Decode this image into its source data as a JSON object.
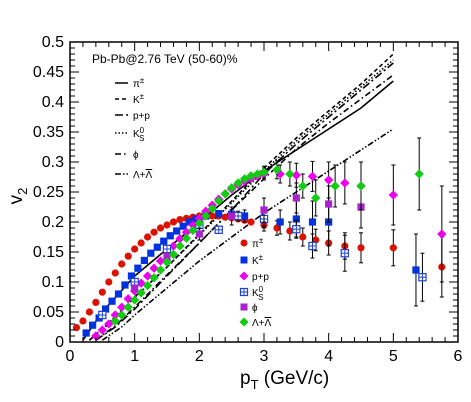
{
  "chart_data": {
    "type": "scatter",
    "annotation": "Pb-Pb@2.76 TeV (50-60)%",
    "xlabel_main": "p",
    "xlabel_sub": "T",
    "xlabel_rest": " (GeV/c)",
    "ylabel_main": "v",
    "ylabel_sub": "2",
    "xlim": [
      0,
      6
    ],
    "ylim": [
      0,
      0.5
    ],
    "x_ticks": [
      "0",
      "1",
      "2",
      "3",
      "4",
      "5",
      "6"
    ],
    "y_ticks": [
      "0",
      "0.05",
      "0.1",
      "0.15",
      "0.2",
      "0.25",
      "0.3",
      "0.35",
      "0.4",
      "0.45",
      "0.5"
    ],
    "curves_legend": [
      {
        "label": "π±",
        "style": "solid"
      },
      {
        "label": "K±",
        "style": "dashed"
      },
      {
        "label": "p+p",
        "style": "dashdot"
      },
      {
        "label": "K0S",
        "style": "dotted"
      },
      {
        "label": "ϕ",
        "style": "dashdot-bold"
      },
      {
        "label": "Λ+Λ",
        "style": "dashdotdot"
      }
    ],
    "curves": [
      {
        "name": "π±",
        "dash": "",
        "points": [
          [
            0.2,
            0.003
          ],
          [
            0.5,
            0.05
          ],
          [
            1.0,
            0.11
          ],
          [
            1.5,
            0.155
          ],
          [
            2.0,
            0.2
          ],
          [
            2.5,
            0.245
          ],
          [
            3.0,
            0.285
          ],
          [
            3.5,
            0.32
          ],
          [
            4.0,
            0.355
          ],
          [
            4.5,
            0.39
          ],
          [
            5.0,
            0.435
          ]
        ]
      },
      {
        "name": "K±",
        "dash": "4,3",
        "points": [
          [
            0.3,
            0.003
          ],
          [
            0.6,
            0.03
          ],
          [
            1.0,
            0.075
          ],
          [
            1.5,
            0.125
          ],
          [
            2.0,
            0.18
          ],
          [
            2.5,
            0.235
          ],
          [
            3.0,
            0.29
          ],
          [
            3.5,
            0.34
          ],
          [
            4.0,
            0.385
          ],
          [
            4.5,
            0.43
          ],
          [
            5.0,
            0.48
          ]
        ]
      },
      {
        "name": "p+p",
        "dash": "8,3,2,3",
        "points": [
          [
            0.4,
            0.003
          ],
          [
            0.7,
            0.025
          ],
          [
            1.0,
            0.055
          ],
          [
            1.5,
            0.11
          ],
          [
            2.0,
            0.165
          ],
          [
            2.5,
            0.22
          ],
          [
            3.0,
            0.28
          ],
          [
            3.5,
            0.33
          ],
          [
            4.0,
            0.375
          ],
          [
            4.5,
            0.42
          ],
          [
            5.0,
            0.465
          ]
        ]
      },
      {
        "name": "K0S",
        "dash": "1.5,2",
        "points": [
          [
            0.3,
            0.003
          ],
          [
            0.6,
            0.032
          ],
          [
            1.0,
            0.074
          ],
          [
            1.5,
            0.125
          ],
          [
            2.0,
            0.178
          ],
          [
            2.5,
            0.232
          ],
          [
            3.0,
            0.285
          ],
          [
            3.5,
            0.335
          ],
          [
            4.0,
            0.38
          ],
          [
            4.5,
            0.425
          ],
          [
            5.0,
            0.47
          ]
        ]
      },
      {
        "name": "ϕ",
        "dash": "6,3,1.5,3",
        "points": [
          [
            0.4,
            0.003
          ],
          [
            0.7,
            0.027
          ],
          [
            1.0,
            0.058
          ],
          [
            1.5,
            0.112
          ],
          [
            2.0,
            0.165
          ],
          [
            2.5,
            0.22
          ],
          [
            3.0,
            0.272
          ],
          [
            3.5,
            0.322
          ],
          [
            4.0,
            0.365
          ],
          [
            4.5,
            0.405
          ],
          [
            5.0,
            0.445
          ]
        ]
      },
      {
        "name": "Λ+Λ",
        "dash": "6,2,1.5,2,1.5,2",
        "points": [
          [
            0.5,
            0.003
          ],
          [
            0.8,
            0.025
          ],
          [
            1.0,
            0.045
          ],
          [
            1.5,
            0.09
          ],
          [
            2.0,
            0.135
          ],
          [
            2.5,
            0.175
          ],
          [
            3.0,
            0.215
          ],
          [
            3.5,
            0.25
          ],
          [
            4.0,
            0.285
          ],
          [
            4.5,
            0.32
          ],
          [
            5.0,
            0.355
          ]
        ]
      }
    ],
    "points_legend": [
      {
        "label": "π±",
        "marker": "circle",
        "color": "#dd1100"
      },
      {
        "label": "K±",
        "marker": "square",
        "color": "#0033dd"
      },
      {
        "label": "p+p",
        "marker": "diamond",
        "color": "#ee00ee"
      },
      {
        "label": "K0S",
        "marker": "open-square",
        "color": "#2244cc"
      },
      {
        "label": "ϕ",
        "marker": "square",
        "color": "#aa22cc"
      },
      {
        "label": "Λ+Λ",
        "marker": "diamond",
        "color": "#11cc11"
      }
    ],
    "series": [
      {
        "name": "π±",
        "marker": "circle",
        "color": "#dd1100",
        "points": [
          [
            0.1,
            0.024,
            0
          ],
          [
            0.2,
            0.035,
            0
          ],
          [
            0.3,
            0.05,
            0
          ],
          [
            0.4,
            0.066,
            0
          ],
          [
            0.5,
            0.083,
            0
          ],
          [
            0.6,
            0.1,
            0
          ],
          [
            0.7,
            0.115,
            0
          ],
          [
            0.8,
            0.13,
            0
          ],
          [
            0.9,
            0.143,
            0
          ],
          [
            1.0,
            0.155,
            0
          ],
          [
            1.1,
            0.165,
            0
          ],
          [
            1.2,
            0.175,
            0
          ],
          [
            1.3,
            0.183,
            0
          ],
          [
            1.4,
            0.19,
            0
          ],
          [
            1.5,
            0.195,
            0
          ],
          [
            1.6,
            0.2,
            0
          ],
          [
            1.7,
            0.204,
            0
          ],
          [
            1.8,
            0.206,
            0
          ],
          [
            1.9,
            0.208,
            0
          ],
          [
            2.0,
            0.21,
            0
          ],
          [
            2.1,
            0.21,
            0
          ],
          [
            2.2,
            0.21,
            0
          ],
          [
            2.3,
            0.21,
            0
          ],
          [
            2.4,
            0.208,
            0
          ],
          [
            2.5,
            0.207,
            0
          ],
          [
            2.6,
            0.205,
            0
          ],
          [
            2.7,
            0.203,
            0
          ],
          [
            2.8,
            0.2,
            0
          ],
          [
            3.0,
            0.195,
            0.01
          ],
          [
            3.2,
            0.19,
            0.012
          ],
          [
            3.4,
            0.185,
            0.015
          ],
          [
            3.6,
            0.175,
            0.015
          ],
          [
            3.8,
            0.17,
            0.018
          ],
          [
            4.0,
            0.165,
            0.02
          ],
          [
            4.25,
            0.16,
            0.022
          ],
          [
            4.5,
            0.157,
            0.025
          ],
          [
            5.0,
            0.157,
            0.03
          ],
          [
            5.75,
            0.125,
            0.05
          ]
        ]
      },
      {
        "name": "K±",
        "marker": "square",
        "color": "#0033dd",
        "points": [
          [
            0.25,
            0.015,
            0
          ],
          [
            0.35,
            0.028,
            0
          ],
          [
            0.45,
            0.04,
            0
          ],
          [
            0.55,
            0.055,
            0
          ],
          [
            0.65,
            0.068,
            0
          ],
          [
            0.75,
            0.08,
            0
          ],
          [
            0.85,
            0.095,
            0
          ],
          [
            0.95,
            0.11,
            0
          ],
          [
            1.05,
            0.123,
            0
          ],
          [
            1.15,
            0.136,
            0
          ],
          [
            1.25,
            0.148,
            0
          ],
          [
            1.35,
            0.158,
            0
          ],
          [
            1.45,
            0.168,
            0
          ],
          [
            1.55,
            0.177,
            0
          ],
          [
            1.65,
            0.185,
            0
          ],
          [
            1.75,
            0.193,
            0
          ],
          [
            1.85,
            0.2,
            0
          ],
          [
            1.95,
            0.205,
            0
          ],
          [
            2.1,
            0.21,
            0
          ],
          [
            2.3,
            0.214,
            0.005
          ],
          [
            2.5,
            0.213,
            0.008
          ],
          [
            2.7,
            0.21,
            0.01
          ],
          [
            3.0,
            0.205,
            0.015
          ],
          [
            3.25,
            0.2,
            0.02
          ],
          [
            3.5,
            0.205,
            0.03
          ],
          [
            3.75,
            0.2,
            0.035
          ],
          [
            4.0,
            0.2,
            0.04
          ],
          [
            5.35,
            0.12,
            0.06
          ]
        ]
      },
      {
        "name": "p+p",
        "marker": "diamond",
        "color": "#ee00ee",
        "points": [
          [
            0.4,
            0.01,
            0
          ],
          [
            0.5,
            0.02,
            0
          ],
          [
            0.6,
            0.03,
            0
          ],
          [
            0.7,
            0.045,
            0
          ],
          [
            0.8,
            0.058,
            0
          ],
          [
            0.9,
            0.072,
            0
          ],
          [
            1.0,
            0.085,
            0
          ],
          [
            1.1,
            0.098,
            0
          ],
          [
            1.2,
            0.11,
            0
          ],
          [
            1.3,
            0.123,
            0
          ],
          [
            1.4,
            0.135,
            0
          ],
          [
            1.5,
            0.148,
            0
          ],
          [
            1.6,
            0.16,
            0
          ],
          [
            1.7,
            0.172,
            0
          ],
          [
            1.8,
            0.183,
            0
          ],
          [
            1.9,
            0.195,
            0
          ],
          [
            2.0,
            0.206,
            0
          ],
          [
            2.1,
            0.218,
            0
          ],
          [
            2.2,
            0.228,
            0
          ],
          [
            2.3,
            0.238,
            0
          ],
          [
            2.4,
            0.247,
            0
          ],
          [
            2.5,
            0.255,
            0
          ],
          [
            2.6,
            0.262,
            0
          ],
          [
            2.7,
            0.268,
            0
          ],
          [
            2.8,
            0.273,
            0
          ],
          [
            2.9,
            0.277,
            0
          ],
          [
            3.0,
            0.28,
            0.01
          ],
          [
            3.25,
            0.28,
            0.015
          ],
          [
            3.5,
            0.278,
            0.02
          ],
          [
            3.75,
            0.276,
            0.025
          ],
          [
            4.0,
            0.27,
            0.03
          ],
          [
            4.25,
            0.265,
            0.035
          ],
          [
            4.5,
            0.26,
            0.04
          ],
          [
            5.0,
            0.245,
            0.05
          ],
          [
            5.75,
            0.18,
            0.08
          ]
        ]
      },
      {
        "name": "K0S",
        "marker": "open-square",
        "color": "#2244cc",
        "points": [
          [
            0.5,
            0.045,
            0
          ],
          [
            1.0,
            0.1,
            0
          ],
          [
            1.5,
            0.155,
            0
          ],
          [
            2.0,
            0.195,
            0
          ],
          [
            2.3,
            0.187,
            0.005
          ],
          [
            2.6,
            0.21,
            0.008
          ],
          [
            3.0,
            0.205,
            0.012
          ],
          [
            3.5,
            0.188,
            0.015
          ],
          [
            3.75,
            0.16,
            0.02
          ],
          [
            4.25,
            0.148,
            0.03
          ],
          [
            5.45,
            0.108,
            0.04
          ]
        ]
      },
      {
        "name": "ϕ",
        "marker": "square",
        "color": "#aa22cc",
        "points": [
          [
            1.0,
            0.09,
            0
          ],
          [
            1.5,
            0.14,
            0
          ],
          [
            2.0,
            0.18,
            0.01
          ],
          [
            2.5,
            0.21,
            0.015
          ],
          [
            3.0,
            0.22,
            0.02
          ],
          [
            3.5,
            0.24,
            0.025
          ],
          [
            4.0,
            0.23,
            0.03
          ],
          [
            4.5,
            0.225,
            0.035
          ]
        ]
      },
      {
        "name": "Λ+Λ",
        "marker": "diamond",
        "color": "#11cc11",
        "points": [
          [
            0.7,
            0.035,
            0
          ],
          [
            0.8,
            0.045,
            0
          ],
          [
            0.9,
            0.058,
            0
          ],
          [
            1.0,
            0.07,
            0
          ],
          [
            1.1,
            0.082,
            0
          ],
          [
            1.2,
            0.094,
            0
          ],
          [
            1.3,
            0.107,
            0
          ],
          [
            1.4,
            0.12,
            0
          ],
          [
            1.5,
            0.133,
            0
          ],
          [
            1.6,
            0.146,
            0
          ],
          [
            1.7,
            0.16,
            0
          ],
          [
            1.8,
            0.173,
            0
          ],
          [
            1.9,
            0.186,
            0
          ],
          [
            2.0,
            0.198,
            0
          ],
          [
            2.1,
            0.21,
            0
          ],
          [
            2.2,
            0.222,
            0
          ],
          [
            2.3,
            0.235,
            0
          ],
          [
            2.4,
            0.247,
            0
          ],
          [
            2.5,
            0.257,
            0
          ],
          [
            2.6,
            0.265,
            0
          ],
          [
            2.7,
            0.272,
            0
          ],
          [
            2.8,
            0.277,
            0
          ],
          [
            2.9,
            0.28,
            0
          ],
          [
            3.0,
            0.283,
            0.01
          ],
          [
            3.2,
            0.287,
            0.015
          ],
          [
            3.4,
            0.28,
            0.02
          ],
          [
            3.6,
            0.26,
            0.02
          ],
          [
            3.8,
            0.24,
            0.03
          ],
          [
            4.1,
            0.26,
            0.035
          ],
          [
            4.5,
            0.26,
            0.04
          ],
          [
            5.4,
            0.28,
            0.06
          ]
        ]
      }
    ]
  }
}
